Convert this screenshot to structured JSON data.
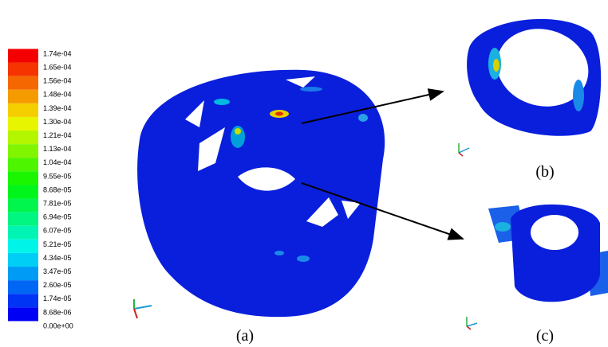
{
  "colorbar": {
    "labels": [
      "1.74e-04",
      "1.65e-04",
      "1.56e-04",
      "1.48e-04",
      "1.39e-04",
      "1.30e-04",
      "1.21e-04",
      "1.13e-04",
      "1.04e-04",
      "9.55e-05",
      "8.68e-05",
      "7.81e-05",
      "6.94e-05",
      "6.07e-05",
      "5.21e-05",
      "4.34e-05",
      "3.47e-05",
      "2.60e-05",
      "1.74e-05",
      "8.68e-06",
      "0.00e+00"
    ]
  },
  "panels": [
    {
      "label": "(a)"
    },
    {
      "label": "(b)"
    },
    {
      "label": "(c)"
    }
  ]
}
